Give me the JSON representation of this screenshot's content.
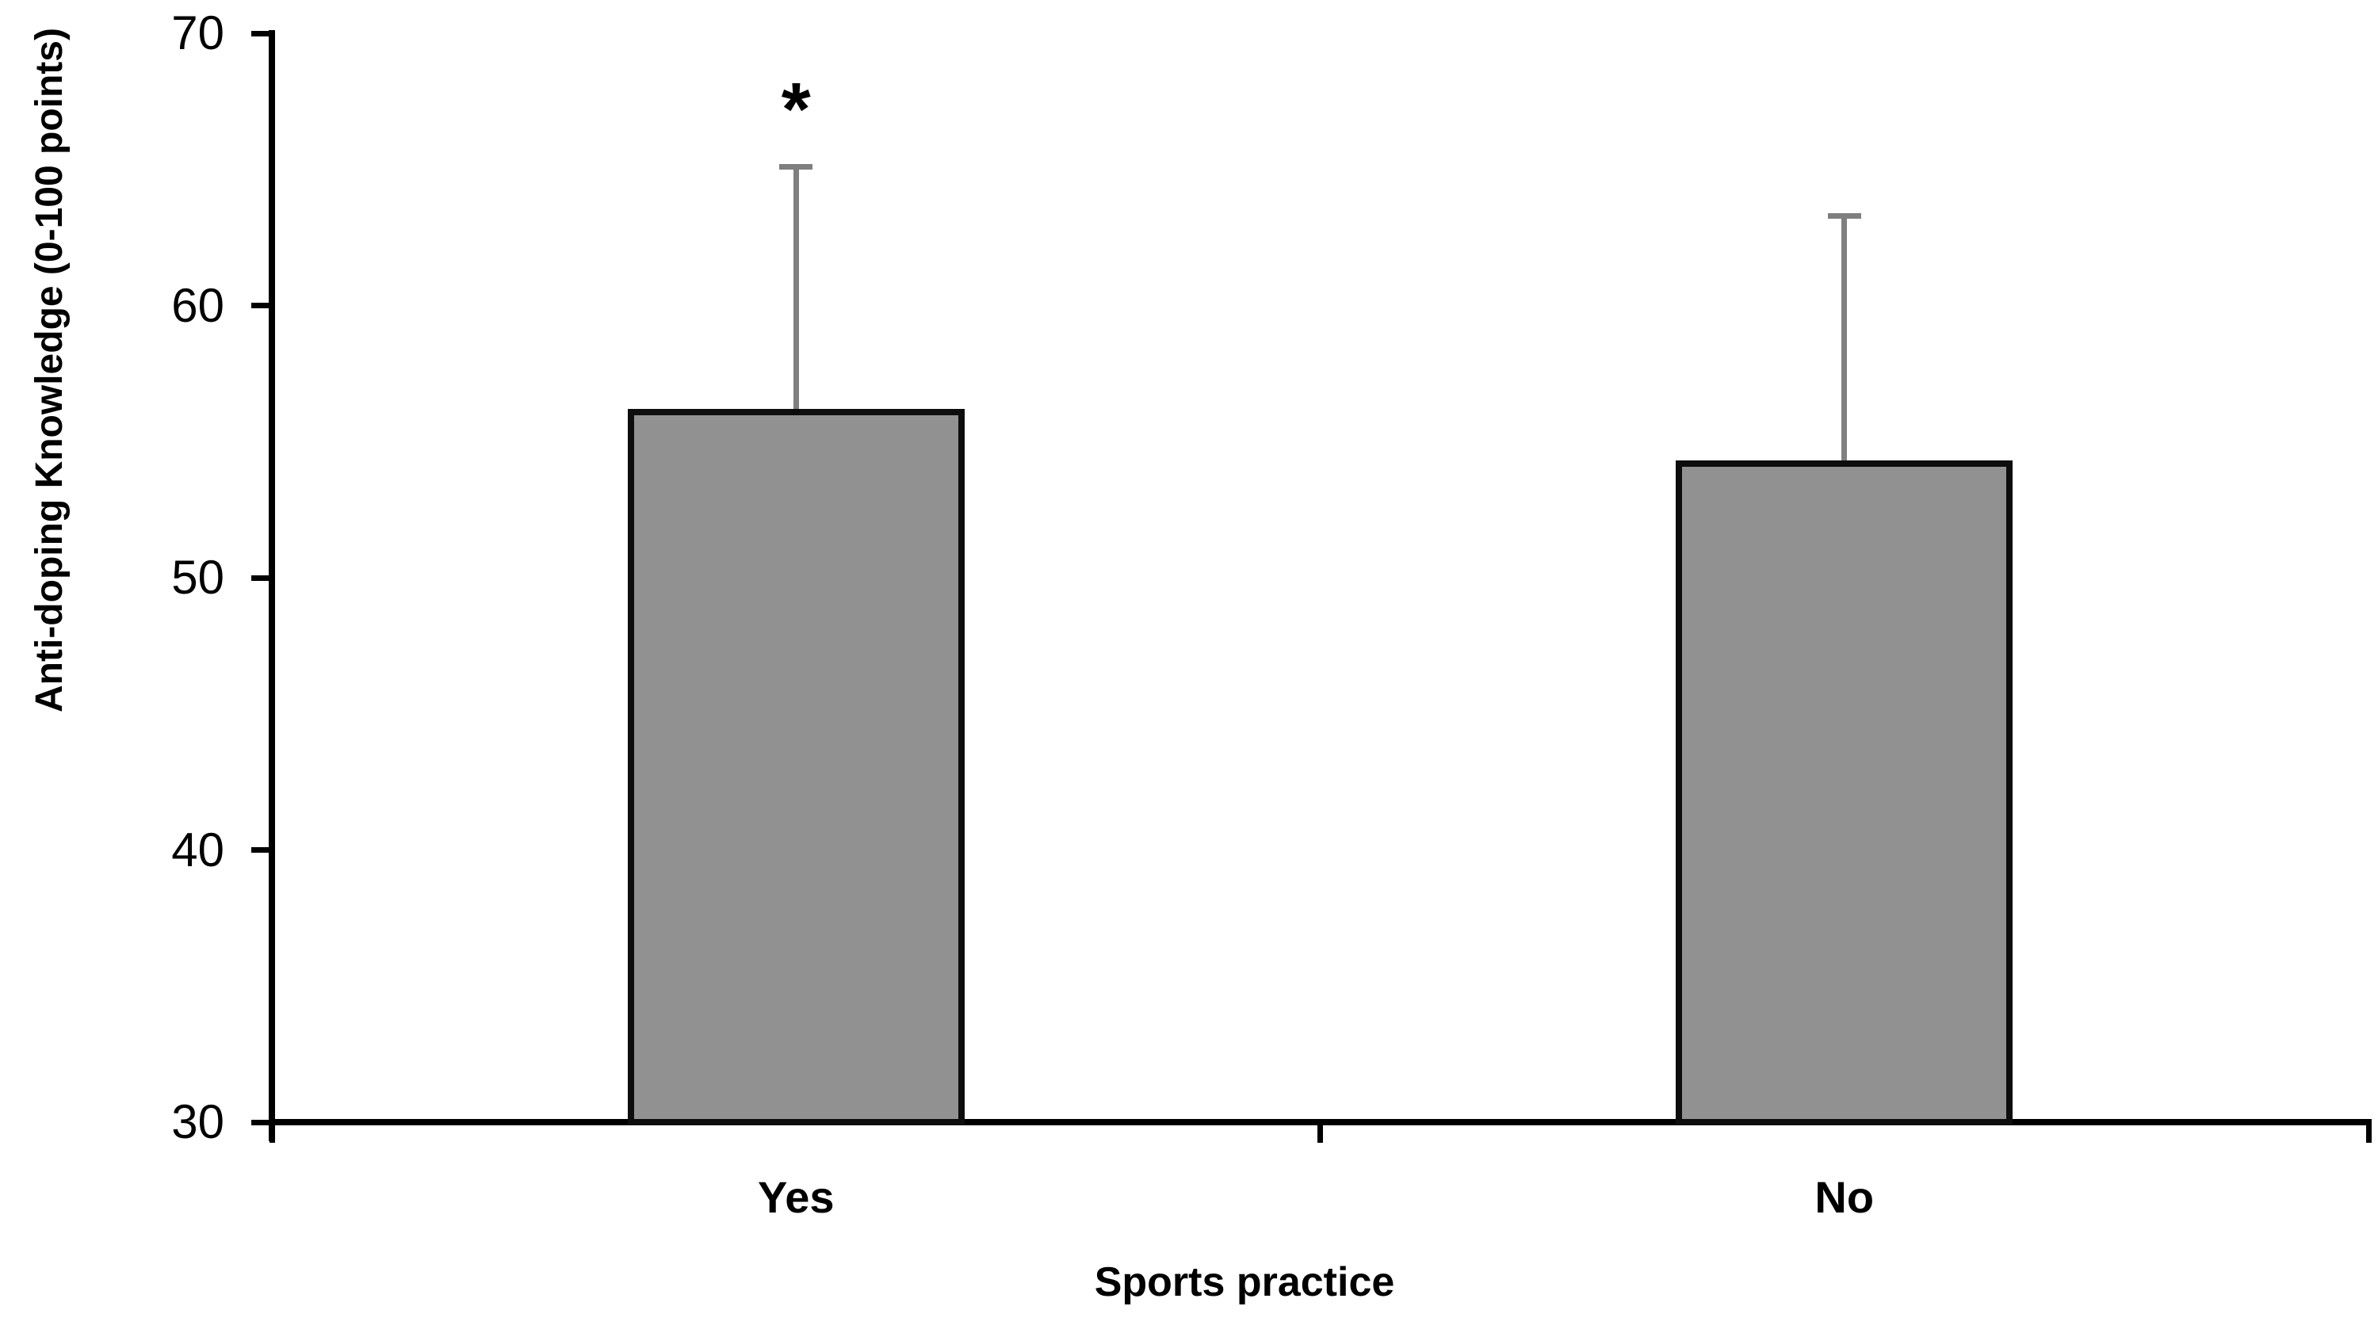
{
  "figure": {
    "background": "#ffffff",
    "significance_note": "*"
  },
  "chart_data": {
    "type": "bar",
    "title": "",
    "xlabel": "Sports practice",
    "ylabel": "Anti-doping Knowledge (0-100 points)",
    "categories": [
      "Yes",
      "No"
    ],
    "values": [
      56.2,
      54.3
    ],
    "error_upper": [
      65.1,
      63.3
    ],
    "significance": [
      "*",
      ""
    ],
    "ylim": [
      30,
      70
    ],
    "yticks": [
      70,
      60,
      50,
      40,
      30
    ],
    "grid": false,
    "legend": null,
    "bar_fill_color": "#919191",
    "bar_border_color": "#0d0d0d",
    "error_bar_color": "#7f7f7f",
    "axis_color": "#000000",
    "text_color": "#000000"
  }
}
